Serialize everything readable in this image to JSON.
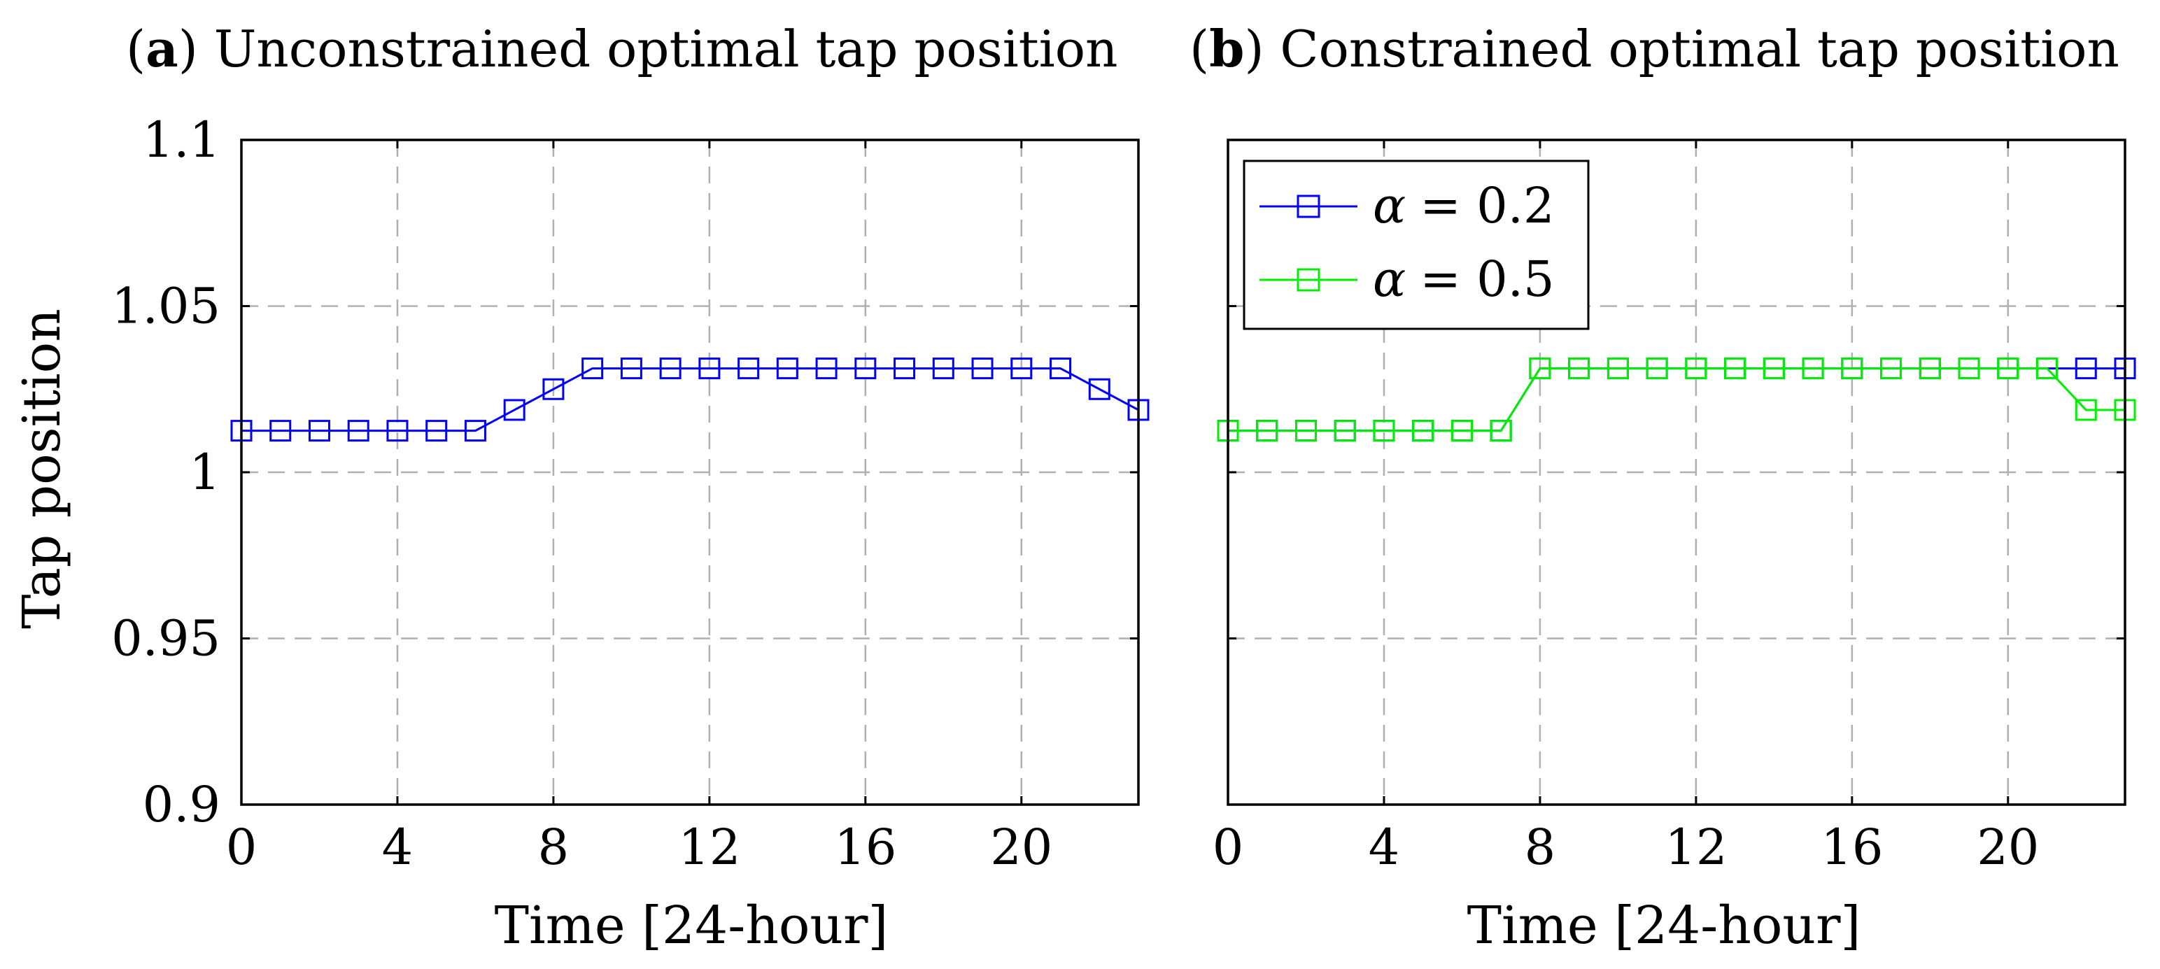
{
  "chart_data": [
    {
      "type": "line",
      "panel_label": "a",
      "title": "Unconstrained optimal tap position",
      "xlabel": "Time [24-hour]",
      "ylabel": "Tap position",
      "xlim": [
        0,
        23
      ],
      "ylim": [
        0.9,
        1.1
      ],
      "xticks": [
        0,
        4,
        8,
        12,
        16,
        20
      ],
      "xtick_labels": [
        "0",
        "4",
        "8",
        "12",
        "16",
        "20"
      ],
      "yticks": [
        0.9,
        0.95,
        1.0,
        1.05,
        1.1
      ],
      "ytick_labels": [
        "0.9",
        "0.95",
        "1",
        "1.05",
        "1.1"
      ],
      "grid": true,
      "x": [
        0,
        1,
        2,
        3,
        4,
        5,
        6,
        7,
        8,
        9,
        10,
        11,
        12,
        13,
        14,
        15,
        16,
        17,
        18,
        19,
        20,
        21,
        22,
        23
      ],
      "series": [
        {
          "name": "α = 0.2",
          "color": "#0000ff",
          "marker": "square",
          "values": [
            1.0125,
            1.0125,
            1.0125,
            1.0125,
            1.0125,
            1.0125,
            1.0125,
            1.01875,
            1.025,
            1.03125,
            1.03125,
            1.03125,
            1.03125,
            1.03125,
            1.03125,
            1.03125,
            1.03125,
            1.03125,
            1.03125,
            1.03125,
            1.03125,
            1.03125,
            1.025,
            1.01875
          ]
        }
      ]
    },
    {
      "type": "line",
      "panel_label": "b",
      "title": "Constrained optimal tap position",
      "xlabel": "Time [24-hour]",
      "ylabel": "",
      "xlim": [
        0,
        23
      ],
      "ylim": [
        0.9,
        1.1
      ],
      "xticks": [
        0,
        4,
        8,
        12,
        16,
        20
      ],
      "xtick_labels": [
        "0",
        "4",
        "8",
        "12",
        "16",
        "20"
      ],
      "yticks": [
        0.9,
        0.95,
        1.0,
        1.05,
        1.1
      ],
      "ytick_labels": [],
      "grid": true,
      "legend_position": "top-left",
      "x": [
        0,
        1,
        2,
        3,
        4,
        5,
        6,
        7,
        8,
        9,
        10,
        11,
        12,
        13,
        14,
        15,
        16,
        17,
        18,
        19,
        20,
        21,
        22,
        23
      ],
      "series": [
        {
          "name": "α = 0.2",
          "legend_symbol": "α",
          "legend_value": "= 0.2",
          "color": "#0000ff",
          "marker": "square",
          "values": [
            1.0125,
            1.0125,
            1.0125,
            1.0125,
            1.0125,
            1.0125,
            1.0125,
            1.0125,
            1.03125,
            1.03125,
            1.03125,
            1.03125,
            1.03125,
            1.03125,
            1.03125,
            1.03125,
            1.03125,
            1.03125,
            1.03125,
            1.03125,
            1.03125,
            1.03125,
            1.03125,
            1.03125
          ]
        },
        {
          "name": "α = 0.5",
          "legend_symbol": "α",
          "legend_value": "= 0.5",
          "color": "#00ee00",
          "marker": "square",
          "values": [
            1.0125,
            1.0125,
            1.0125,
            1.0125,
            1.0125,
            1.0125,
            1.0125,
            1.0125,
            1.03125,
            1.03125,
            1.03125,
            1.03125,
            1.03125,
            1.03125,
            1.03125,
            1.03125,
            1.03125,
            1.03125,
            1.03125,
            1.03125,
            1.03125,
            1.03125,
            1.01875,
            1.01875
          ]
        }
      ]
    }
  ]
}
